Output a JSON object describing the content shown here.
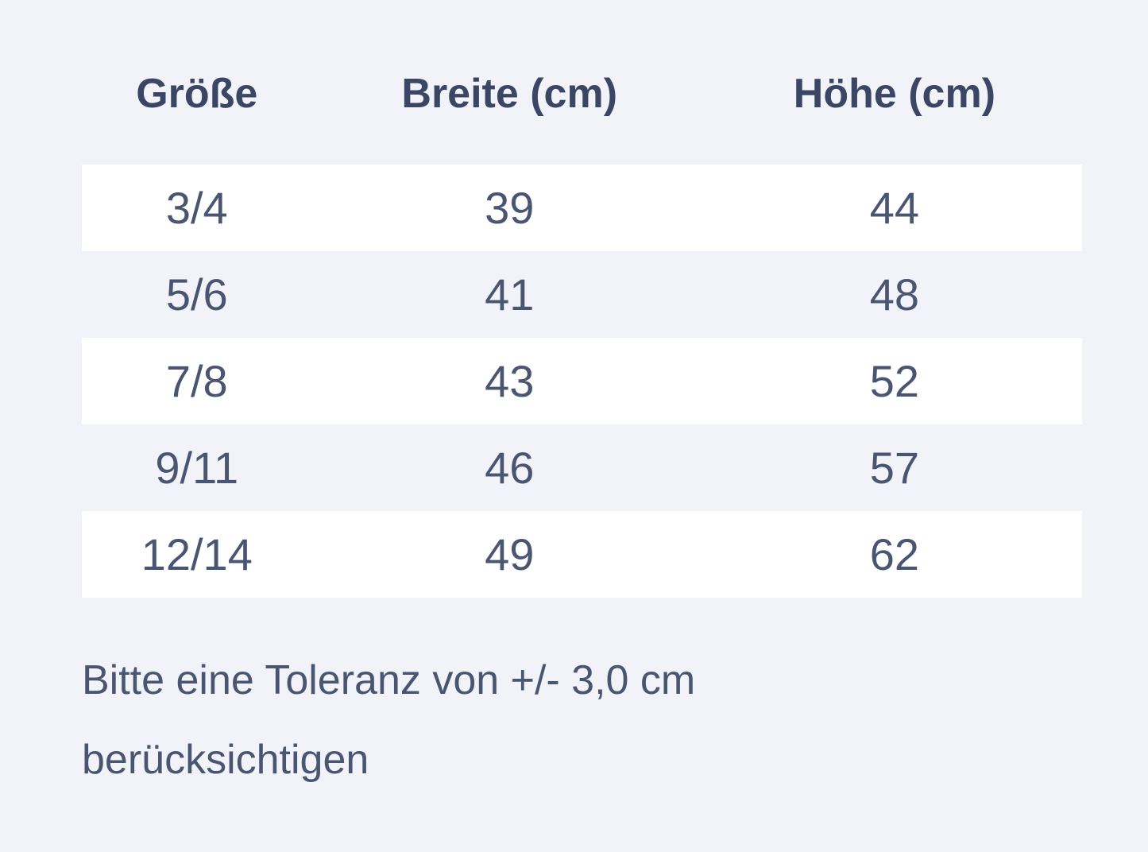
{
  "colors": {
    "page_bg": "#f1f3f9",
    "header_text": "#3a4664",
    "body_text": "#4a5671",
    "stripe_row_bg": "#ffffff"
  },
  "size_table": {
    "columns": [
      {
        "label": "Größe"
      },
      {
        "label": "Breite (cm)"
      },
      {
        "label": "Höhe (cm)"
      }
    ],
    "rows": [
      {
        "size": "3/4",
        "width_cm": "39",
        "height_cm": "44"
      },
      {
        "size": "5/6",
        "width_cm": "41",
        "height_cm": "48"
      },
      {
        "size": "7/8",
        "width_cm": "43",
        "height_cm": "52"
      },
      {
        "size": "9/11",
        "width_cm": "46",
        "height_cm": "57"
      },
      {
        "size": "12/14",
        "width_cm": "49",
        "height_cm": "62"
      }
    ]
  },
  "note": {
    "text": "Bitte eine Toleranz von +/- 3,0 cm berücksichtigen",
    "lines": [
      "Bitte eine Toleranz von +/- 3,0 cm",
      "berücksichtigen"
    ]
  }
}
